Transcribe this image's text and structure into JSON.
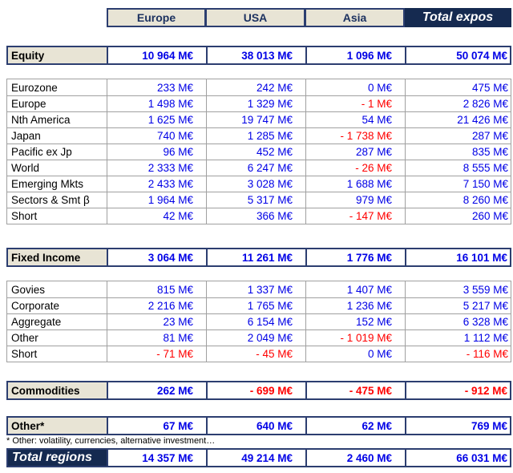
{
  "colors": {
    "navy_fill": "#152a50",
    "navy_border": "#2c3e70",
    "header_beige": "#e8e4d5",
    "positive_blue": "#0000e6",
    "negative_red": "#ff0000",
    "detail_border_gray": "#a0a0a0"
  },
  "unit": "M€",
  "columns": [
    "Europe",
    "USA",
    "Asia",
    "Total expos"
  ],
  "sections": [
    {
      "kind": "summary",
      "id": "equity",
      "label": "Equity",
      "values": [
        "10 964 M€",
        "38 013 M€",
        "1 096 M€",
        "50 074 M€"
      ]
    },
    {
      "kind": "detail",
      "id": "equity-details",
      "rows": [
        {
          "label": "Eurozone",
          "values": [
            "233 M€",
            "242 M€",
            "0 M€",
            "475 M€"
          ]
        },
        {
          "label": "Europe",
          "values": [
            "1 498 M€",
            "1 329 M€",
            "- 1 M€",
            "2 826 M€"
          ]
        },
        {
          "label": "Nth America",
          "values": [
            "1 625 M€",
            "19 747 M€",
            "54 M€",
            "21 426 M€"
          ]
        },
        {
          "label": "Japan",
          "values": [
            "740 M€",
            "1 285 M€",
            "- 1 738 M€",
            "287 M€"
          ]
        },
        {
          "label": "Pacific ex Jp",
          "values": [
            "96 M€",
            "452 M€",
            "287 M€",
            "835 M€"
          ]
        },
        {
          "label": "World",
          "values": [
            "2 333 M€",
            "6 247 M€",
            "- 26 M€",
            "8 555 M€"
          ]
        },
        {
          "label": "Emerging Mkts",
          "values": [
            "2 433 M€",
            "3 028 M€",
            "1 688 M€",
            "7 150 M€"
          ]
        },
        {
          "label": "Sectors & Smt β",
          "values": [
            "1 964 M€",
            "5 317 M€",
            "979 M€",
            "8 260 M€"
          ]
        },
        {
          "label": "Short",
          "values": [
            "42 M€",
            "366 M€",
            "- 147 M€",
            "260 M€"
          ]
        }
      ]
    },
    {
      "kind": "summary",
      "id": "fixed-income",
      "label": "Fixed Income",
      "values": [
        "3 064 M€",
        "11 261 M€",
        "1 776 M€",
        "16 101 M€"
      ]
    },
    {
      "kind": "detail",
      "id": "fixed-income-details",
      "rows": [
        {
          "label": "Govies",
          "values": [
            "815 M€",
            "1 337 M€",
            "1 407 M€",
            "3 559 M€"
          ]
        },
        {
          "label": "Corporate",
          "values": [
            "2 216 M€",
            "1 765 M€",
            "1 236 M€",
            "5 217 M€"
          ]
        },
        {
          "label": "Aggregate",
          "values": [
            "23 M€",
            "6 154 M€",
            "152 M€",
            "6 328 M€"
          ]
        },
        {
          "label": "Other",
          "values": [
            "81 M€",
            "2 049 M€",
            "- 1 019 M€",
            "1 112 M€"
          ]
        },
        {
          "label": "Short",
          "values": [
            "- 71 M€",
            "- 45 M€",
            "0 M€",
            "- 116 M€"
          ]
        }
      ]
    },
    {
      "kind": "summary",
      "id": "commodities",
      "label": "Commodities",
      "values": [
        "262 M€",
        "- 699 M€",
        "- 475 M€",
        "- 912 M€"
      ]
    },
    {
      "kind": "summary",
      "id": "other",
      "label": "Other*",
      "values": [
        "67 M€",
        "640 M€",
        "62 M€",
        "769 M€"
      ],
      "footnote": "* Other: volatility, currencies, alternative investment…"
    },
    {
      "kind": "total",
      "id": "total-regions",
      "label": "Total regions",
      "values": [
        "14 357 M€",
        "49 214 M€",
        "2 460 M€",
        "66 031 M€"
      ]
    }
  ]
}
